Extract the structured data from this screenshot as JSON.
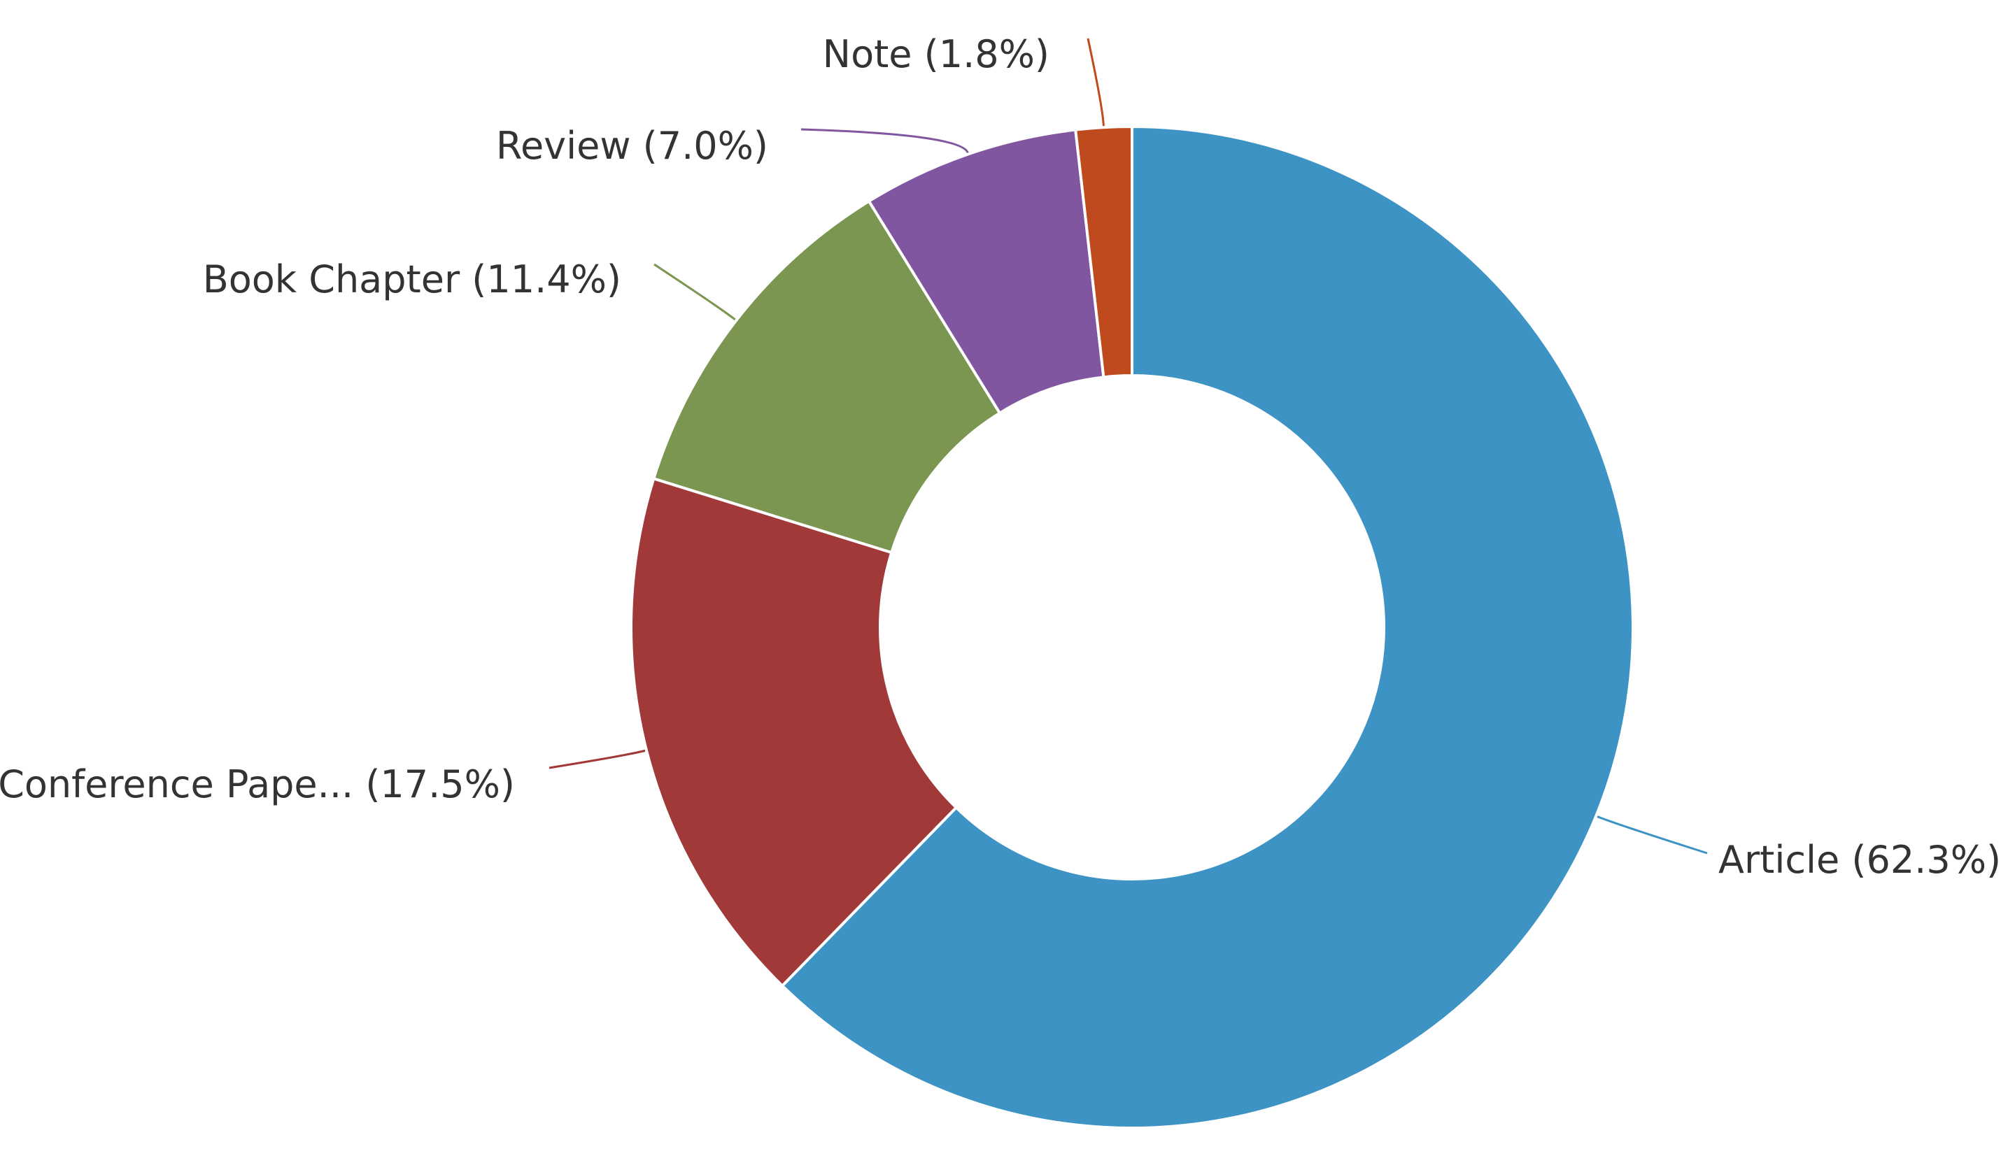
{
  "chart_data": {
    "type": "pie",
    "variant": "donut",
    "title": "",
    "start": "top",
    "direction": "clockwise",
    "slices": [
      {
        "label": "Article (62.3%)",
        "category": "Article",
        "value": 62.3,
        "color": "#3d93c4"
      },
      {
        "label": "Conference Pape... (17.5%)",
        "category": "Conference Pape...",
        "value": 17.5,
        "color": "#a03937"
      },
      {
        "label": "Book Chapter (11.4%)",
        "category": "Book Chapter",
        "value": 11.4,
        "color": "#7a9650"
      },
      {
        "label": "Review (7.0%)",
        "category": "Review",
        "value": 7.0,
        "color": "#8156a0"
      },
      {
        "label": "Note (1.8%)",
        "category": "Note",
        "value": 1.8,
        "color": "#bf4a1d"
      }
    ],
    "legend": "none"
  }
}
